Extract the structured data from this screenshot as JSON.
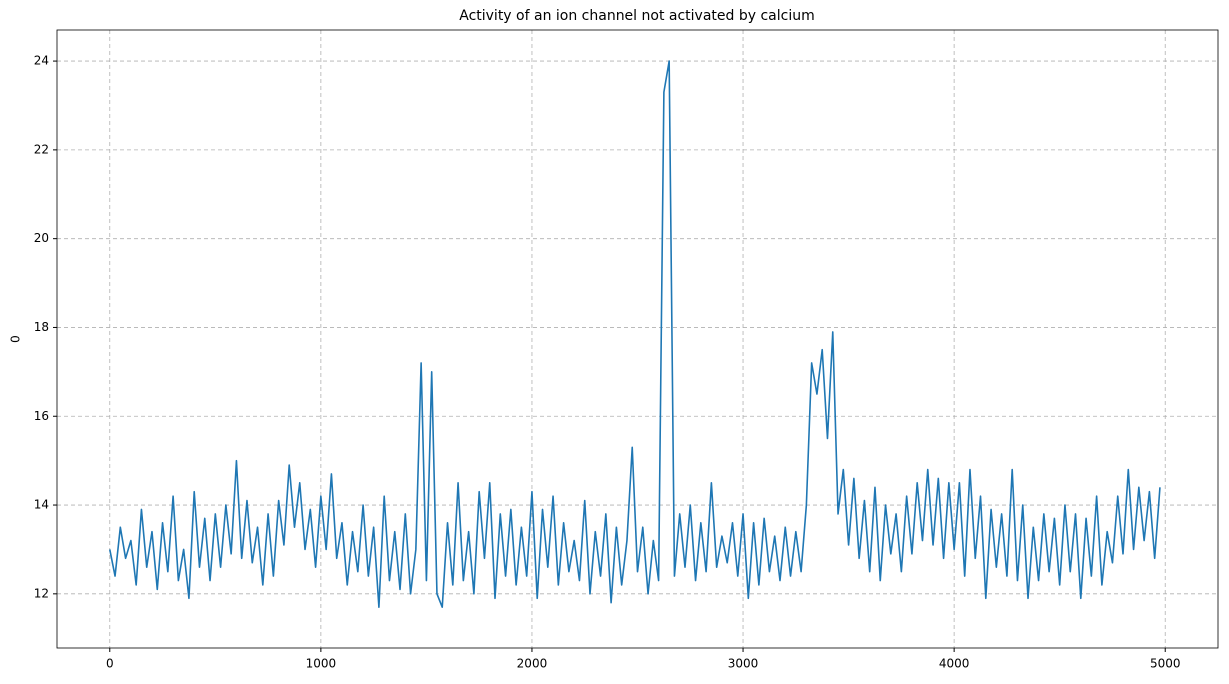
{
  "chart_data": {
    "type": "line",
    "title": "Activity of an ion channel not activated by calcium",
    "ylabel": "0",
    "x": [
      0,
      25,
      50,
      75,
      100,
      125,
      150,
      175,
      200,
      225,
      250,
      275,
      300,
      325,
      350,
      375,
      400,
      425,
      450,
      475,
      500,
      525,
      550,
      575,
      600,
      625,
      650,
      675,
      700,
      725,
      750,
      775,
      800,
      825,
      850,
      875,
      900,
      925,
      950,
      975,
      1000,
      1025,
      1050,
      1075,
      1100,
      1125,
      1150,
      1175,
      1200,
      1225,
      1250,
      1275,
      1300,
      1325,
      1350,
      1375,
      1400,
      1425,
      1450,
      1475,
      1500,
      1525,
      1550,
      1575,
      1600,
      1625,
      1650,
      1675,
      1700,
      1725,
      1750,
      1775,
      1800,
      1825,
      1850,
      1875,
      1900,
      1925,
      1950,
      1975,
      2000,
      2025,
      2050,
      2075,
      2100,
      2125,
      2150,
      2175,
      2200,
      2225,
      2250,
      2275,
      2300,
      2325,
      2350,
      2375,
      2400,
      2425,
      2450,
      2475,
      2500,
      2525,
      2550,
      2575,
      2600,
      2625,
      2650,
      2675,
      2700,
      2725,
      2750,
      2775,
      2800,
      2825,
      2850,
      2875,
      2900,
      2925,
      2950,
      2975,
      3000,
      3025,
      3050,
      3075,
      3100,
      3125,
      3150,
      3175,
      3200,
      3225,
      3250,
      3275,
      3300,
      3325,
      3350,
      3375,
      3400,
      3425,
      3450,
      3475,
      3500,
      3525,
      3550,
      3575,
      3600,
      3625,
      3650,
      3675,
      3700,
      3725,
      3750,
      3775,
      3800,
      3825,
      3850,
      3875,
      3900,
      3925,
      3950,
      3975,
      4000,
      4025,
      4050,
      4075,
      4100,
      4125,
      4150,
      4175,
      4200,
      4225,
      4250,
      4275,
      4300,
      4325,
      4350,
      4375,
      4400,
      4425,
      4450,
      4475,
      4500,
      4525,
      4550,
      4575,
      4600,
      4625,
      4650,
      4675,
      4700,
      4725,
      4750,
      4775,
      4800,
      4825,
      4850,
      4875,
      4900,
      4925,
      4950,
      4975
    ],
    "series": [
      {
        "color": "#1f77b4",
        "values": [
          13.0,
          12.4,
          13.5,
          12.8,
          13.2,
          12.2,
          13.9,
          12.6,
          13.4,
          12.1,
          13.6,
          12.5,
          14.2,
          12.3,
          13.0,
          11.9,
          14.3,
          12.6,
          13.7,
          12.3,
          13.8,
          12.6,
          14.0,
          12.9,
          15.0,
          12.8,
          14.1,
          12.7,
          13.5,
          12.2,
          13.8,
          12.4,
          14.1,
          13.1,
          14.9,
          13.5,
          14.5,
          13.0,
          13.9,
          12.6,
          14.2,
          13.0,
          14.7,
          12.8,
          13.6,
          12.2,
          13.4,
          12.5,
          14.0,
          12.4,
          13.5,
          11.7,
          14.2,
          12.3,
          13.4,
          12.1,
          13.8,
          12.0,
          13.0,
          17.2,
          12.3,
          17.0,
          12.0,
          11.7,
          13.6,
          12.2,
          14.5,
          12.3,
          13.4,
          12.0,
          14.3,
          12.8,
          14.5,
          11.9,
          13.8,
          12.4,
          13.9,
          12.2,
          13.5,
          12.4,
          14.3,
          11.9,
          13.9,
          12.6,
          14.2,
          12.2,
          13.6,
          12.5,
          13.2,
          12.3,
          14.1,
          12.0,
          13.4,
          12.4,
          13.8,
          11.8,
          13.5,
          12.2,
          13.2,
          15.3,
          12.5,
          13.5,
          12.0,
          13.2,
          12.3,
          23.3,
          24.0,
          12.4,
          13.8,
          12.6,
          14.0,
          12.3,
          13.6,
          12.5,
          14.5,
          12.6,
          13.3,
          12.7,
          13.6,
          12.4,
          13.8,
          11.9,
          13.6,
          12.2,
          13.7,
          12.5,
          13.3,
          12.3,
          13.5,
          12.4,
          13.4,
          12.5,
          14.0,
          17.2,
          16.5,
          17.5,
          15.5,
          17.9,
          13.8,
          14.8,
          13.1,
          14.6,
          12.8,
          14.1,
          12.5,
          14.4,
          12.3,
          14.0,
          12.9,
          13.8,
          12.5,
          14.2,
          12.9,
          14.5,
          13.2,
          14.8,
          13.1,
          14.6,
          12.8,
          14.5,
          13.0,
          14.5,
          12.4,
          14.8,
          12.8,
          14.2,
          11.9,
          13.9,
          12.6,
          13.8,
          12.4,
          14.8,
          12.3,
          14.0,
          11.9,
          13.5,
          12.3,
          13.8,
          12.5,
          13.7,
          12.2,
          14.0,
          12.5,
          13.8,
          11.9,
          13.7,
          12.4,
          14.2,
          12.2,
          13.4,
          12.7,
          14.2,
          12.9,
          14.8,
          13.0,
          14.4,
          13.2,
          14.3,
          12.8,
          14.4
        ]
      }
    ],
    "xlim": [
      -250,
      5250
    ],
    "ylim": [
      10.78,
      24.7
    ],
    "xticks": [
      0,
      1000,
      2000,
      3000,
      4000,
      5000
    ],
    "yticks": [
      12,
      14,
      16,
      18,
      20,
      22,
      24
    ],
    "grid": true
  }
}
